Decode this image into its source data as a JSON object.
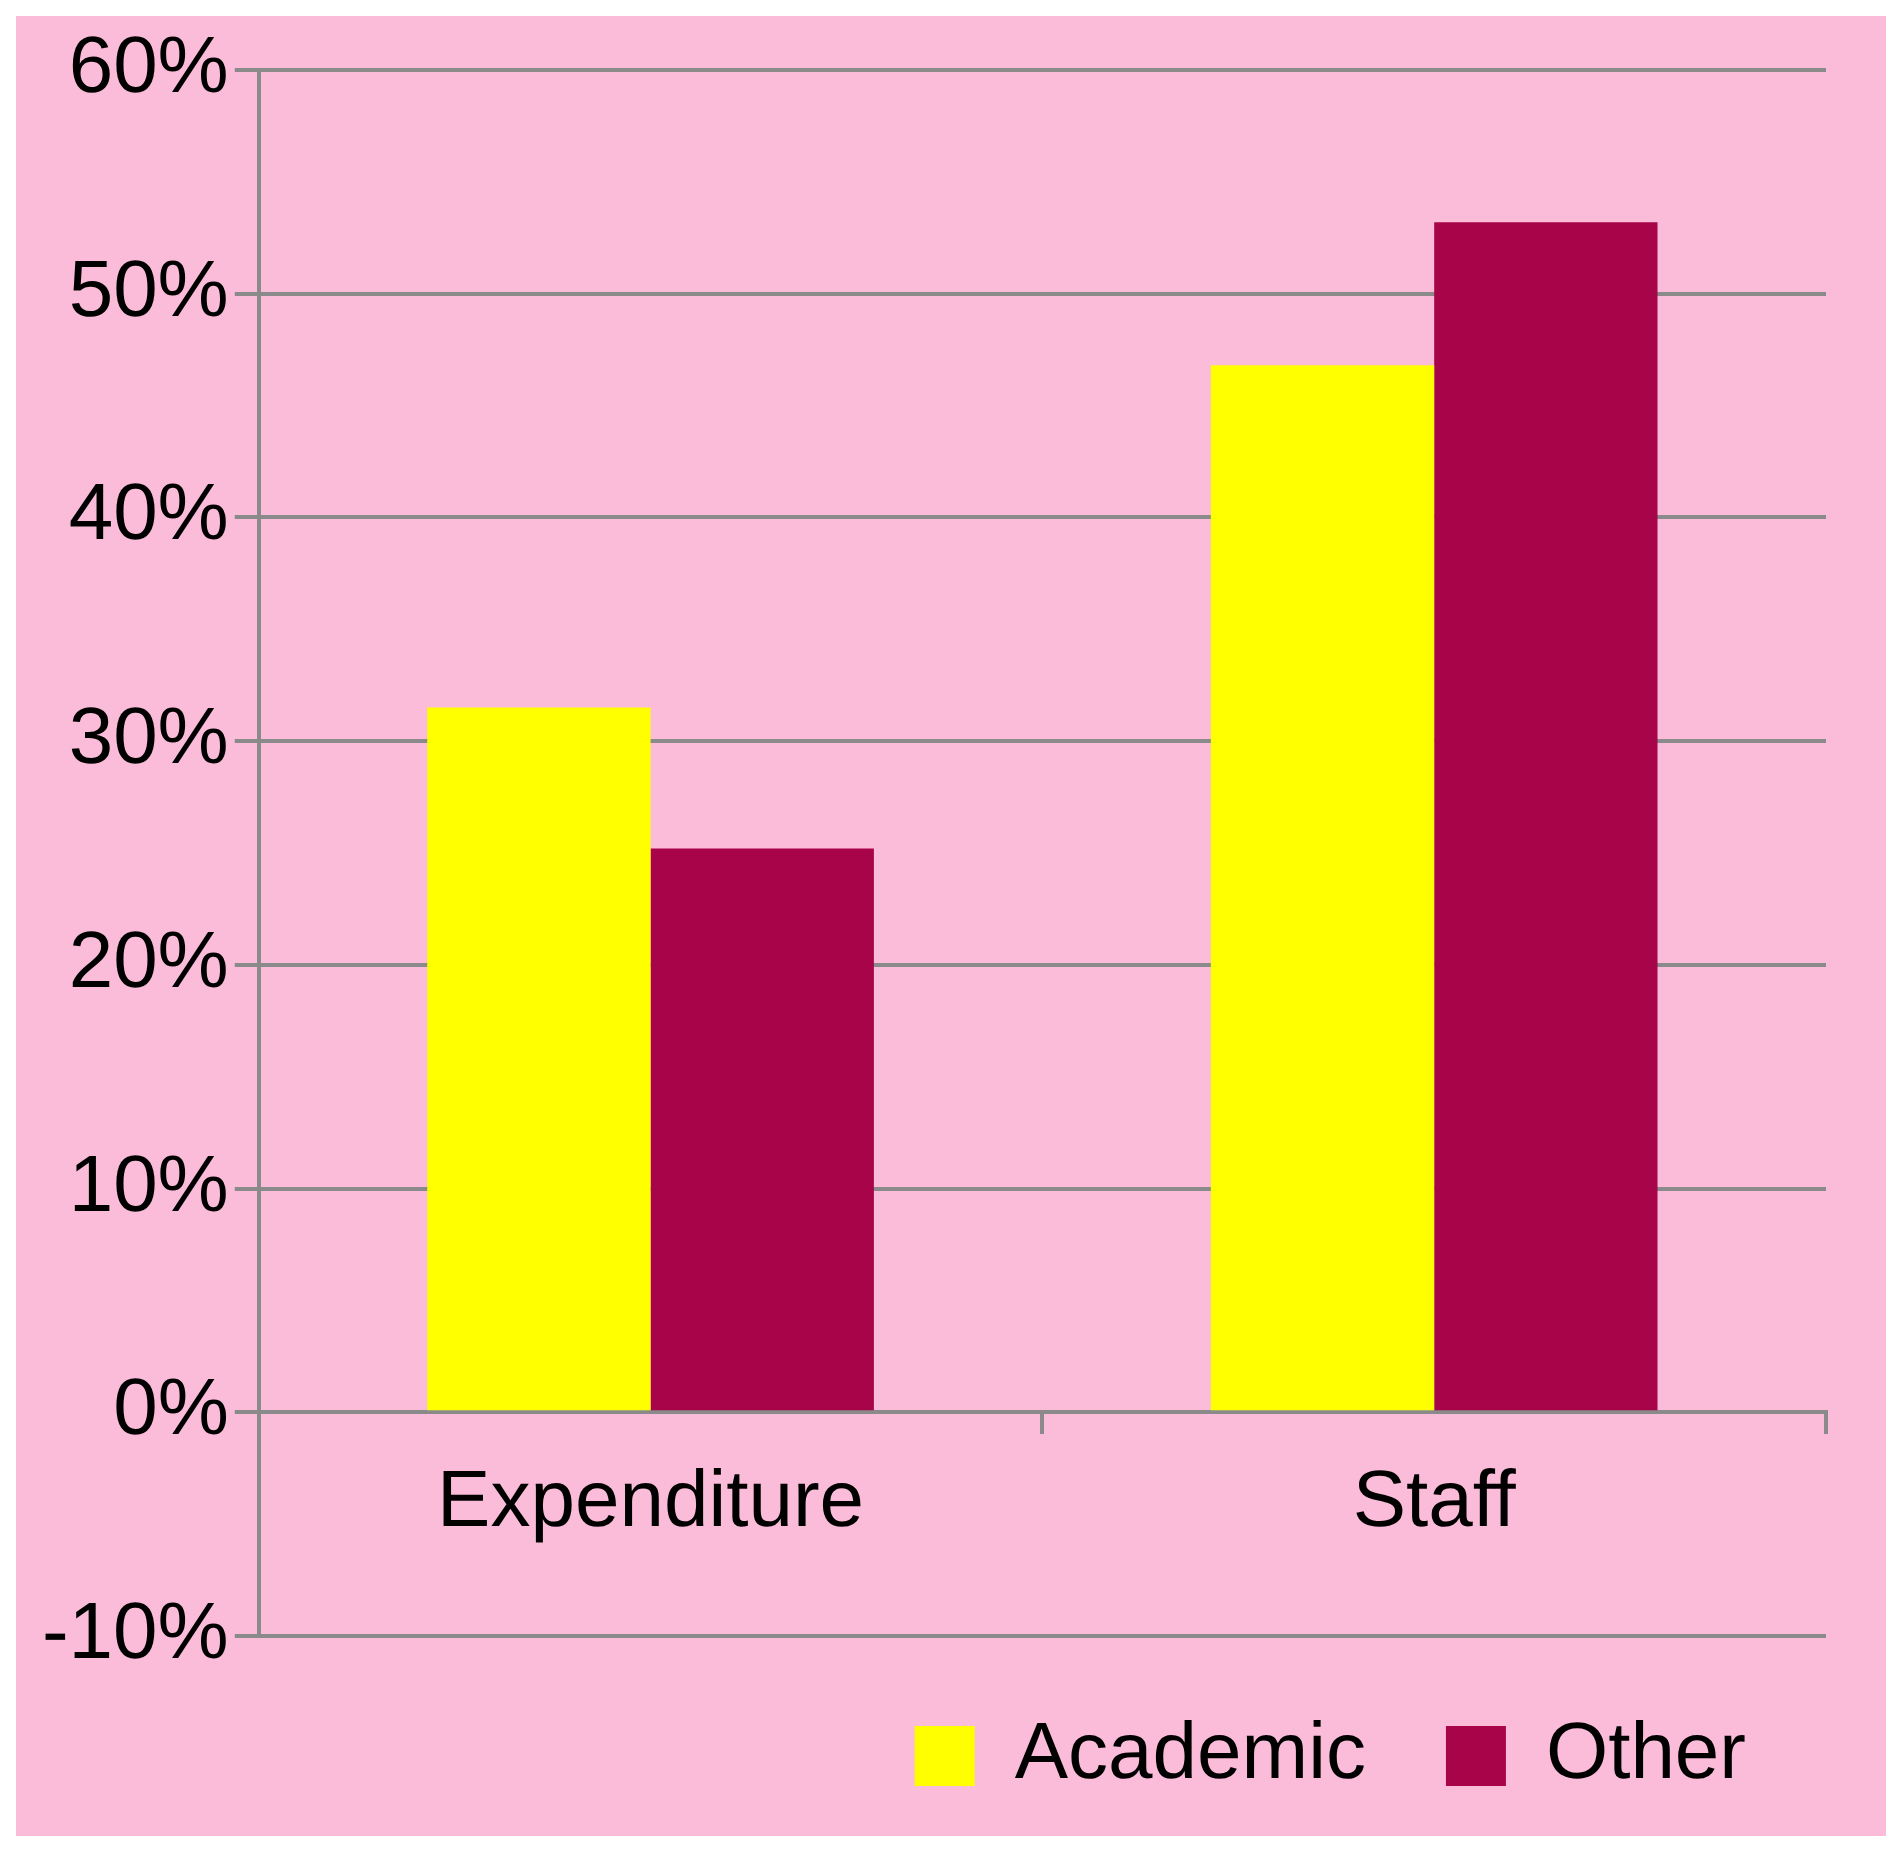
{
  "chart_data": {
    "type": "bar",
    "categories": [
      "Expenditure",
      "Staff"
    ],
    "series": [
      {
        "name": "Academic",
        "color": "#ffff00",
        "values": [
          31.5,
          46.8
        ]
      },
      {
        "name": "Other",
        "color": "#a8044a",
        "values": [
          25.2,
          53.2
        ]
      }
    ],
    "ylim": [
      -10,
      60
    ],
    "yticks": [
      {
        "value": -10,
        "label": "-10%"
      },
      {
        "value": 0,
        "label": "0%"
      },
      {
        "value": 10,
        "label": "10%"
      },
      {
        "value": 20,
        "label": "20%"
      },
      {
        "value": 30,
        "label": "30%"
      },
      {
        "value": 40,
        "label": "40%"
      },
      {
        "value": 50,
        "label": "50%"
      },
      {
        "value": 60,
        "label": "60%"
      }
    ],
    "grid": "y",
    "legend": "bottom right"
  }
}
